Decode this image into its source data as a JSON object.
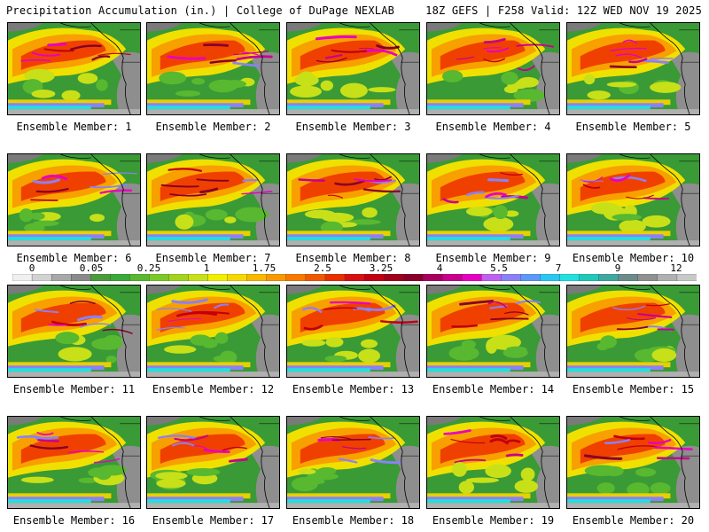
{
  "header": {
    "title_left": "Precipitation Accumulation (in.) | College of DuPage NEXLAB",
    "title_right": "18Z GEFS | F258 Valid: 12Z WED NOV 19 2025"
  },
  "members": [
    {
      "label": "Ensemble Member: 1"
    },
    {
      "label": "Ensemble Member: 2"
    },
    {
      "label": "Ensemble Member: 3"
    },
    {
      "label": "Ensemble Member: 4"
    },
    {
      "label": "Ensemble Member: 5"
    },
    {
      "label": "Ensemble Member: 6"
    },
    {
      "label": "Ensemble Member: 7"
    },
    {
      "label": "Ensemble Member: 8"
    },
    {
      "label": "Ensemble Member: 9"
    },
    {
      "label": "Ensemble Member: 10"
    },
    {
      "label": "Ensemble Member: 11"
    },
    {
      "label": "Ensemble Member: 12"
    },
    {
      "label": "Ensemble Member: 13"
    },
    {
      "label": "Ensemble Member: 14"
    },
    {
      "label": "Ensemble Member: 15"
    },
    {
      "label": "Ensemble Member: 16"
    },
    {
      "label": "Ensemble Member: 17"
    },
    {
      "label": "Ensemble Member: 18"
    },
    {
      "label": "Ensemble Member: 19"
    },
    {
      "label": "Ensemble Member: 20"
    }
  ],
  "colorbar": {
    "labels": [
      "0",
      "0.05",
      "0.25",
      "1",
      "1.75",
      "2.5",
      "3.25",
      "4",
      "5.5",
      "7",
      "9",
      "12"
    ],
    "colors": [
      "#f0f0f0",
      "#d2d2d2",
      "#a8a8a8",
      "#8a8a8a",
      "#4a9c3a",
      "#3aa83a",
      "#58b830",
      "#7cc828",
      "#a0d420",
      "#c8e018",
      "#f0f000",
      "#f8d800",
      "#f8b800",
      "#f89800",
      "#f87800",
      "#f05800",
      "#e83000",
      "#d81010",
      "#c00010",
      "#a00018",
      "#880028",
      "#a80060",
      "#c8008c",
      "#e800c0",
      "#c060f0",
      "#8c80f8",
      "#5c98f8",
      "#28c8f0",
      "#20e0e0",
      "#20c8b8",
      "#40a8a0",
      "#6c8c8c",
      "#909090",
      "#b0b0b0",
      "#c8c8c8"
    ]
  }
}
